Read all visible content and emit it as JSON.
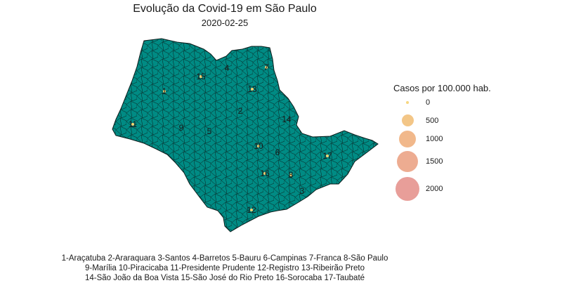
{
  "title": "Evolução da Covid-19 em São Paulo",
  "subtitle": "2020-02-25",
  "legend": {
    "title": "Casos por 100.000 hab.",
    "items": [
      {
        "label": "0",
        "color": "#F5D271"
      },
      {
        "label": "500",
        "color": "#F2C07A"
      },
      {
        "label": "1000",
        "color": "#EFB07E"
      },
      {
        "label": "1500",
        "color": "#EBA385"
      },
      {
        "label": "2000",
        "color": "#E6938E"
      }
    ]
  },
  "map": {
    "fill_color": "#008B84",
    "border_color": "#0b1b1a"
  },
  "regions": [
    {
      "id": "1",
      "name": "Araçatuba",
      "marker": true
    },
    {
      "id": "2",
      "name": "Araraquara",
      "marker": false
    },
    {
      "id": "3",
      "name": "Santos",
      "marker": false
    },
    {
      "id": "4",
      "name": "Barretos",
      "marker": false
    },
    {
      "id": "5",
      "name": "Bauru",
      "marker": false
    },
    {
      "id": "6",
      "name": "Campinas",
      "marker": false
    },
    {
      "id": "7",
      "name": "Franca",
      "marker": true
    },
    {
      "id": "8",
      "name": "São Paulo",
      "marker": true
    },
    {
      "id": "9",
      "name": "Marília",
      "marker": false
    },
    {
      "id": "10",
      "name": "Piracicaba",
      "marker": true
    },
    {
      "id": "11",
      "name": "Presidente Prudente",
      "marker": true
    },
    {
      "id": "12",
      "name": "Registro",
      "marker": true
    },
    {
      "id": "13",
      "name": "Ribeirão Preto",
      "marker": true
    },
    {
      "id": "14",
      "name": "São João da Boa Vista",
      "marker": false
    },
    {
      "id": "15",
      "name": "São José do Rio Preto",
      "marker": true
    },
    {
      "id": "16",
      "name": "Sorocaba",
      "marker": true
    },
    {
      "id": "17",
      "name": "Taubaté",
      "marker": true
    }
  ],
  "footer": {
    "line1": "1-Araçatuba 2-Araraquara 3-Santos 4-Barretos 5-Bauru 6-Campinas 7-Franca 8-São Paulo",
    "line2": "9-Marília 10-Piracicaba 11-Presidente Prudente 12-Registro 13-Ribeirão Preto",
    "line3": "14-São João da Boa Vista 15-São José do Rio Preto 16-Sorocaba 17-Taubaté"
  }
}
